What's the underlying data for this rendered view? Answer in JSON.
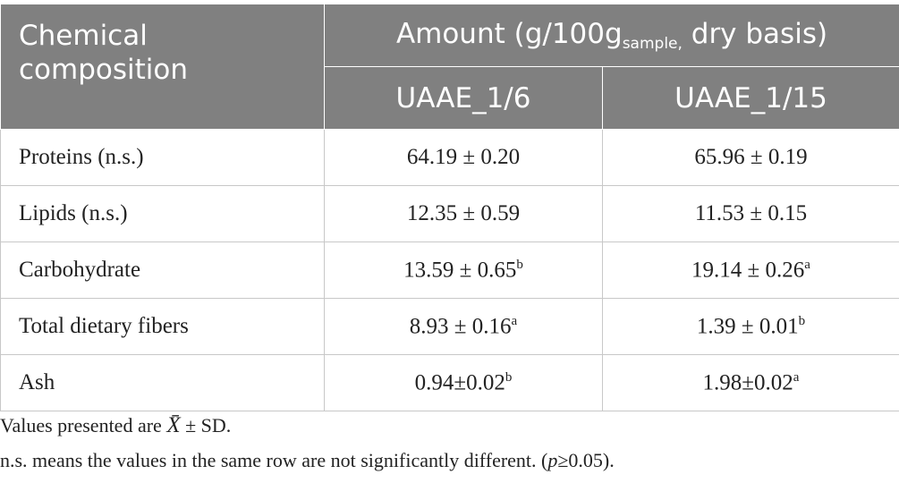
{
  "table": {
    "header": {
      "row_label": "Chemical composition",
      "amount": {
        "text": "Amount (g/100g",
        "sub": "sample,",
        "tail": " dry basis)"
      },
      "columns": [
        "UAAE_1/6",
        "UAAE_1/15"
      ]
    },
    "rows": [
      {
        "label": "Proteins (n.s.)",
        "cells": [
          {
            "value": "64.19 ± 0.20"
          },
          {
            "value": "65.96 ± 0.19"
          }
        ]
      },
      {
        "label": "Lipids (n.s.)",
        "cells": [
          {
            "value": "12.35 ± 0.59"
          },
          {
            "value": "11.53 ± 0.15"
          }
        ]
      },
      {
        "label": "Carbohydrate",
        "cells": [
          {
            "value": "13.59 ± 0.65",
            "sup": "b"
          },
          {
            "value": "19.14 ± 0.26",
            "sup": "a"
          }
        ]
      },
      {
        "label": "Total dietary fibers",
        "cells": [
          {
            "value": "8.93 ± 0.16",
            "sup": "a"
          },
          {
            "value": "1.39 ± 0.01",
            "sup": "b"
          }
        ]
      },
      {
        "label": "Ash",
        "cells": [
          {
            "value": "0.94±0.02",
            "sup": "b"
          },
          {
            "value": "1.98±0.02",
            "sup": "a"
          }
        ]
      }
    ]
  },
  "notes": [
    {
      "text": "Values presented are ",
      "symbol": "X̄",
      "tail": " ± SD."
    },
    {
      "text": "n.s. means the values in the same row are not significantly different. (",
      "italic": "p",
      "tail": "≥0.05)."
    }
  ]
}
